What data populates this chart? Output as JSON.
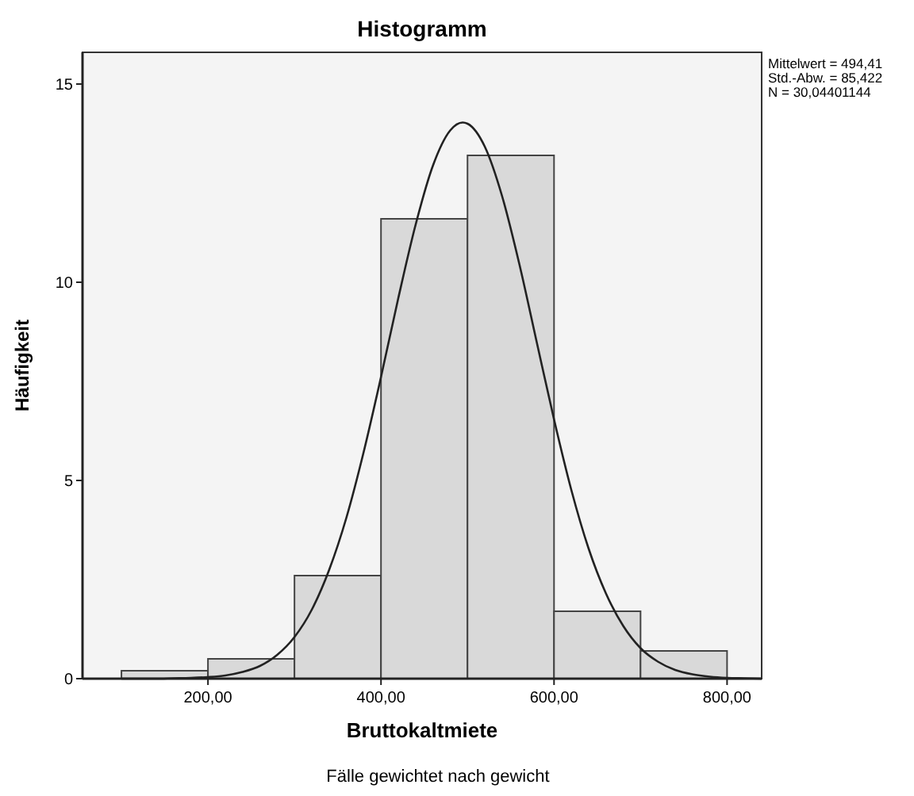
{
  "chart_data": {
    "type": "histogram",
    "title": "Histogramm",
    "xlabel": "Bruttokaltmiete",
    "ylabel": "Häufigkeit",
    "annotations": [
      "Mittelwert = 494,41",
      "Std.-Abw. = 85,422",
      "N = 30,04401144",
      "Fälle gewichtet nach gewicht"
    ],
    "bins": [
      100,
      200,
      300,
      400,
      500,
      600,
      700,
      800
    ],
    "values": [
      0.2,
      0.5,
      2.6,
      11.6,
      13.2,
      1.7,
      0.7
    ],
    "color": "#d9d9d9",
    "series": [
      {
        "type": "line",
        "color": "#222222",
        "x": [
          100,
          120,
          140,
          160,
          180,
          200,
          220,
          240,
          260,
          280,
          300,
          320,
          340,
          360,
          380,
          400,
          420,
          440,
          460,
          480,
          494.41,
          500,
          520,
          540,
          560,
          580,
          600,
          620,
          640,
          660,
          680,
          700,
          720,
          740,
          760,
          780,
          800,
          820,
          840
        ],
        "values": [
          0,
          0,
          0,
          0.01,
          0.02,
          0.04,
          0.08,
          0.17,
          0.32,
          0.6,
          1.05,
          1.74,
          2.74,
          4.06,
          5.72,
          7.61,
          9.6,
          11.45,
          12.94,
          13.83,
          14.03,
          14,
          13.42,
          12.17,
          10.45,
          8.49,
          6.54,
          4.76,
          3.28,
          2.15,
          1.33,
          0.77,
          0.43,
          0.22,
          0.11,
          0.05,
          0.02,
          0.01,
          0
        ]
      }
    ],
    "xlim": [
      55,
      840
    ],
    "ylim": [
      0,
      15.8
    ],
    "xticks": [
      {
        "value": 200,
        "label": "200,00"
      },
      {
        "value": 400,
        "label": "400,00"
      },
      {
        "value": 600,
        "label": "600,00"
      },
      {
        "value": 800,
        "label": "800,00"
      }
    ],
    "yticks": [
      0,
      5,
      10,
      15
    ],
    "grid": false
  }
}
